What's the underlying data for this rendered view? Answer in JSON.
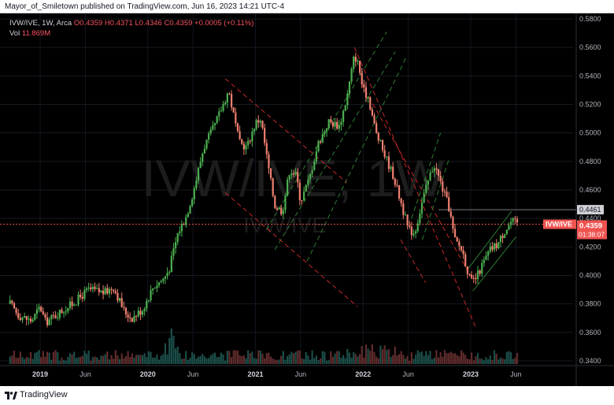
{
  "publish_line": "Mayor_of_Smiletown published on TradingView.com, Jun 16, 2023 14:21 UTC-4",
  "legend": {
    "symbol": "IVW/IVE, 1W, Arca",
    "open": "O0.4359",
    "high": "H0.4371",
    "low": "L0.4346",
    "close": "C0.4359",
    "change": "+0.0005 (+0.11%)",
    "vol_label": "Vol",
    "vol_value": "11.869M"
  },
  "watermark": {
    "big": "IVW/IVE, 1W",
    "small": "IVW/IVE"
  },
  "price_tag": {
    "symbol": "IVW/IVE",
    "price": "0.4359",
    "countdown": "01:38:07"
  },
  "level_tag": "0.4461",
  "footer_brand": "TradingView",
  "colors": {
    "up": "#26a69a",
    "down": "#ef5350",
    "bar_up": "#4caf50",
    "bar_down": "#f08070",
    "channel_green": "#2e7d32",
    "channel_red": "#c62828",
    "price_line": "#ef5350",
    "level_line": "#787b86",
    "background": "#000000"
  },
  "chart_data": {
    "type": "candlestick",
    "timeframe": "1W",
    "y_axis": {
      "range": [
        0.33,
        0.585
      ],
      "ticks": [
        "0.5800",
        "0.5600",
        "0.5400",
        "0.5200",
        "0.5000",
        "0.4800",
        "0.4600",
        "0.4400",
        "0.4200",
        "0.4000",
        "0.3800",
        "0.3600",
        "0.3400"
      ]
    },
    "x_axis": {
      "ticks": [
        {
          "label": "2019",
          "year": true,
          "t": 2019.0
        },
        {
          "label": "Jun",
          "year": false,
          "t": 2019.42
        },
        {
          "label": "2020",
          "year": true,
          "t": 2020.0
        },
        {
          "label": "Jun",
          "year": false,
          "t": 2020.42
        },
        {
          "label": "2021",
          "year": true,
          "t": 2021.0
        },
        {
          "label": "Jun",
          "year": false,
          "t": 2021.42
        },
        {
          "label": "2022",
          "year": true,
          "t": 2022.0
        },
        {
          "label": "Jun",
          "year": false,
          "t": 2022.42
        },
        {
          "label": "2023",
          "year": true,
          "t": 2023.0
        },
        {
          "label": "Jun",
          "year": false,
          "t": 2023.42
        }
      ]
    },
    "price_path": [
      [
        2018.72,
        0.38
      ],
      [
        2018.8,
        0.372
      ],
      [
        2018.92,
        0.368
      ],
      [
        2019.0,
        0.378
      ],
      [
        2019.05,
        0.367
      ],
      [
        2019.2,
        0.375
      ],
      [
        2019.3,
        0.38
      ],
      [
        2019.45,
        0.39
      ],
      [
        2019.6,
        0.388
      ],
      [
        2019.68,
        0.392
      ],
      [
        2019.78,
        0.375
      ],
      [
        2019.85,
        0.37
      ],
      [
        2019.95,
        0.376
      ],
      [
        2020.05,
        0.392
      ],
      [
        2020.15,
        0.398
      ],
      [
        2020.2,
        0.405
      ],
      [
        2020.28,
        0.43
      ],
      [
        2020.35,
        0.44
      ],
      [
        2020.42,
        0.458
      ],
      [
        2020.52,
        0.49
      ],
      [
        2020.62,
        0.505
      ],
      [
        2020.7,
        0.52
      ],
      [
        2020.75,
        0.53
      ],
      [
        2020.85,
        0.493
      ],
      [
        2020.92,
        0.49
      ],
      [
        2021.0,
        0.507
      ],
      [
        2021.05,
        0.51
      ],
      [
        2021.12,
        0.476
      ],
      [
        2021.18,
        0.449
      ],
      [
        2021.25,
        0.445
      ],
      [
        2021.32,
        0.475
      ],
      [
        2021.38,
        0.47
      ],
      [
        2021.42,
        0.452
      ],
      [
        2021.5,
        0.468
      ],
      [
        2021.58,
        0.492
      ],
      [
        2021.68,
        0.508
      ],
      [
        2021.78,
        0.505
      ],
      [
        2021.85,
        0.525
      ],
      [
        2021.92,
        0.555
      ],
      [
        2021.96,
        0.547
      ],
      [
        2022.0,
        0.53
      ],
      [
        2022.05,
        0.525
      ],
      [
        2022.12,
        0.5
      ],
      [
        2022.2,
        0.485
      ],
      [
        2022.28,
        0.47
      ],
      [
        2022.35,
        0.452
      ],
      [
        2022.42,
        0.432
      ],
      [
        2022.48,
        0.43
      ],
      [
        2022.55,
        0.452
      ],
      [
        2022.62,
        0.47
      ],
      [
        2022.66,
        0.478
      ],
      [
        2022.72,
        0.465
      ],
      [
        2022.8,
        0.447
      ],
      [
        2022.85,
        0.425
      ],
      [
        2022.92,
        0.418
      ],
      [
        2023.0,
        0.395
      ],
      [
        2023.05,
        0.398
      ],
      [
        2023.1,
        0.406
      ],
      [
        2023.18,
        0.418
      ],
      [
        2023.25,
        0.422
      ],
      [
        2023.32,
        0.432
      ],
      [
        2023.38,
        0.438
      ],
      [
        2023.44,
        0.436
      ]
    ],
    "last_price": 0.4359,
    "horizontal_level": 0.4461,
    "channels": [
      {
        "color": "green",
        "style": "dashed",
        "lines": [
          [
            [
              2021.1,
              0.432
            ],
            [
              2022.22,
              0.571
            ]
          ],
          [
            [
              2021.18,
              0.418
            ],
            [
              2022.3,
              0.557
            ]
          ],
          [
            [
              2021.48,
              0.41
            ],
            [
              2022.4,
              0.553
            ]
          ]
        ]
      },
      {
        "color": "red",
        "style": "dashed",
        "lines": [
          [
            [
              2020.72,
              0.538
            ],
            [
              2021.85,
              0.465
            ]
          ],
          [
            [
              2020.72,
              0.458
            ],
            [
              2021.95,
              0.378
            ]
          ]
        ]
      },
      {
        "color": "red",
        "style": "dashed",
        "lines": [
          [
            [
              2021.92,
              0.56
            ],
            [
              2023.05,
              0.363
            ]
          ],
          [
            [
              2021.98,
              0.535
            ],
            [
              2023.02,
              0.397
            ]
          ],
          [
            [
              2022.35,
              0.425
            ],
            [
              2022.58,
              0.395
            ]
          ]
        ]
      },
      {
        "color": "green",
        "style": "dashed",
        "lines": [
          [
            [
              2022.45,
              0.44
            ],
            [
              2022.72,
              0.5
            ]
          ],
          [
            [
              2022.55,
              0.425
            ],
            [
              2022.8,
              0.482
            ]
          ]
        ]
      },
      {
        "color": "green",
        "style": "solid",
        "lines": [
          [
            [
              2022.98,
              0.405
            ],
            [
              2023.38,
              0.445
            ]
          ],
          [
            [
              2023.02,
              0.389
            ],
            [
              2023.42,
              0.427
            ]
          ]
        ]
      }
    ],
    "volume_label": "Vol 11.869M"
  }
}
